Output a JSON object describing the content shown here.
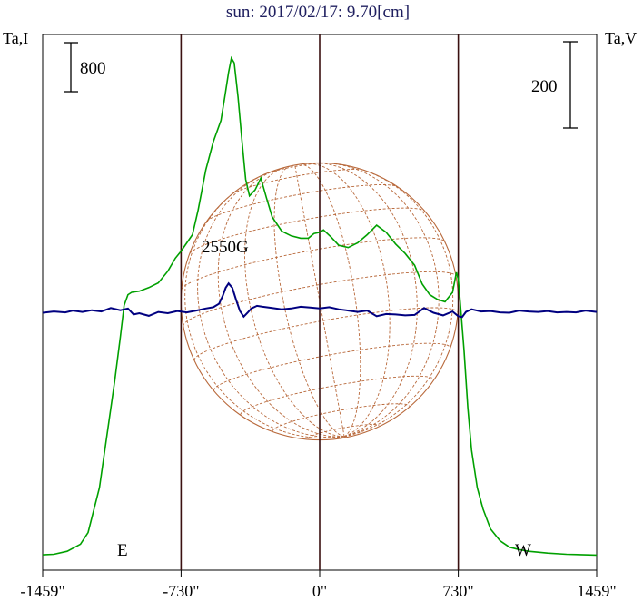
{
  "title": "sun: 2017/02/17: 9.70[cm]",
  "left_axis_label": "Ta,I",
  "right_axis_label": "Ta,V",
  "scale_bar_left": "800",
  "scale_bar_right": "200",
  "limb_label_east": "E",
  "limb_label_west": "W",
  "annotation": "2550G",
  "colors": {
    "intensity": "#00a000",
    "polarization": "#000080",
    "grid": "#b8683a",
    "vertical_lines": "#3a1010"
  },
  "chart_data": {
    "type": "line",
    "x_unit": "arcsec",
    "xlim": [
      -1459,
      1459
    ],
    "x_ticks": [
      -1459,
      -730,
      0,
      730,
      1459
    ],
    "x_tick_labels": [
      "-1459\"",
      "-730\"",
      "0\"",
      "730\"",
      "1459\""
    ],
    "vertical_markers": [
      -730,
      0,
      730
    ],
    "series": [
      {
        "name": "I",
        "axis": "left",
        "color": "#00a000",
        "x": [
          -1459,
          -1400,
          -1330,
          -1260,
          -1220,
          -1160,
          -1080,
          -1050,
          -1030,
          -1010,
          -990,
          -950,
          -900,
          -850,
          -800,
          -760,
          -730,
          -700,
          -670,
          -640,
          -600,
          -560,
          -520,
          -500,
          -480,
          -465,
          -450,
          -430,
          -410,
          -390,
          -370,
          -340,
          -310,
          -280,
          -250,
          -200,
          -150,
          -100,
          -60,
          -30,
          0,
          20,
          60,
          100,
          150,
          200,
          250,
          300,
          350,
          400,
          450,
          500,
          540,
          580,
          620,
          660,
          700,
          720,
          730,
          740,
          760,
          780,
          800,
          830,
          860,
          900,
          950,
          1000,
          1050,
          1100,
          1200,
          1300,
          1459
        ],
        "y": [
          30,
          35,
          60,
          120,
          220,
          600,
          1500,
          1880,
          2150,
          2240,
          2260,
          2270,
          2300,
          2340,
          2440,
          2550,
          2610,
          2680,
          2750,
          2960,
          3300,
          3540,
          3720,
          3920,
          4130,
          4250,
          4210,
          3920,
          3560,
          3220,
          3080,
          3130,
          3230,
          3060,
          2900,
          2780,
          2740,
          2720,
          2720,
          2760,
          2770,
          2790,
          2730,
          2660,
          2640,
          2680,
          2750,
          2830,
          2770,
          2670,
          2590,
          2490,
          2330,
          2240,
          2200,
          2180,
          2260,
          2430,
          2370,
          2180,
          1770,
          1280,
          920,
          600,
          420,
          250,
          150,
          95,
          75,
          60,
          45,
          35,
          28
        ]
      },
      {
        "name": "V",
        "axis": "right",
        "color": "#000080",
        "x": [
          -1459,
          -1400,
          -1340,
          -1300,
          -1250,
          -1200,
          -1150,
          -1100,
          -1050,
          -1010,
          -980,
          -950,
          -900,
          -850,
          -800,
          -750,
          -700,
          -650,
          -600,
          -560,
          -530,
          -510,
          -495,
          -480,
          -460,
          -440,
          -420,
          -400,
          -380,
          -360,
          -330,
          -300,
          -250,
          -200,
          -150,
          -100,
          -50,
          0,
          50,
          100,
          150,
          200,
          250,
          300,
          350,
          400,
          450,
          500,
          550,
          600,
          650,
          700,
          730,
          750,
          770,
          800,
          850,
          900,
          950,
          1000,
          1050,
          1100,
          1150,
          1200,
          1250,
          1300,
          1350,
          1400,
          1459
        ],
        "y": [
          1,
          4,
          2,
          6,
          3,
          7,
          4,
          12,
          7,
          11,
          -3,
          0,
          -6,
          3,
          0,
          5,
          2,
          6,
          11,
          14,
          22,
          41,
          59,
          69,
          59,
          31,
          5,
          -8,
          1,
          11,
          17,
          15,
          12,
          9,
          11,
          15,
          13,
          11,
          14,
          9,
          6,
          3,
          6,
          -7,
          -2,
          -3,
          -5,
          -4,
          12,
          1,
          -5,
          4,
          -7,
          -9,
          3,
          9,
          4,
          5,
          2,
          1,
          6,
          4,
          3,
          5,
          2,
          3,
          2,
          6,
          3
        ]
      }
    ],
    "left_axis": {
      "label": "Ta,I",
      "ylim": [
        0,
        4400
      ],
      "scale_bar": 800
    },
    "right_axis": {
      "label": "Ta,V",
      "ylim": [
        -225,
        225
      ],
      "scale_bar": 200
    }
  }
}
